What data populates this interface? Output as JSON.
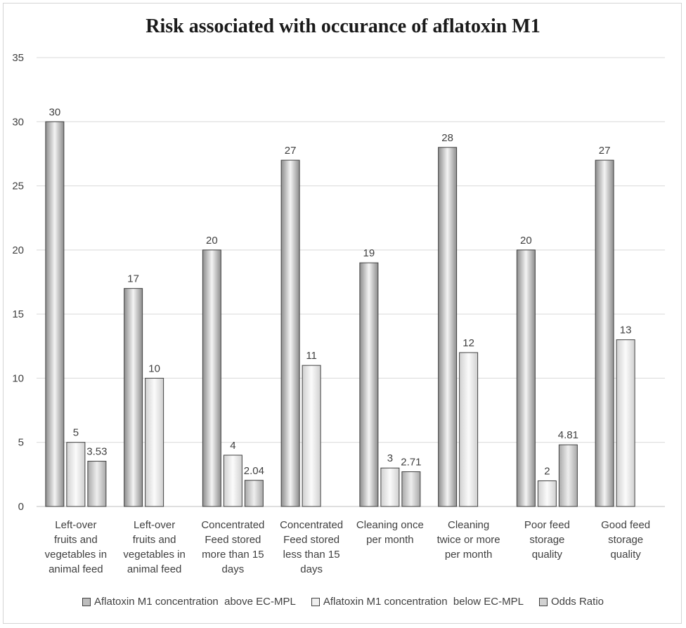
{
  "chart_data": {
    "type": "bar",
    "title": "Risk associated with occurance of aflatoxin M1",
    "xlabel": "",
    "ylabel": "",
    "ylim": [
      0,
      35
    ],
    "yticks": [
      0,
      5,
      10,
      15,
      20,
      25,
      30,
      35
    ],
    "grid": true,
    "legend_position": "bottom",
    "categories": [
      [
        "Left-over",
        "fruits and",
        "vegetables in",
        "animal feed"
      ],
      [
        "Left-over",
        "fruits and",
        "vegetables in",
        "animal feed"
      ],
      [
        "Concentrated",
        "Feed stored",
        "more than 15",
        "days"
      ],
      [
        "Concentrated",
        "Feed stored",
        "less than 15",
        "days"
      ],
      [
        "Cleaning  once",
        "per month"
      ],
      [
        "Cleaning",
        "twice or more",
        "per month"
      ],
      [
        "Poor feed",
        "storage",
        "quality"
      ],
      [
        "Good feed",
        "storage",
        "quality"
      ]
    ],
    "series": [
      {
        "name": "Aflatoxin M1 concentration  above EC-MPL",
        "values": [
          30,
          17,
          20,
          27,
          19,
          28,
          20,
          27
        ],
        "labels": [
          "30",
          "17",
          "20",
          "27",
          "19",
          "28",
          "20",
          "27"
        ],
        "color": "#c9c9c9"
      },
      {
        "name": "Aflatoxin M1 concentration  below EC-MPL",
        "values": [
          5,
          10,
          4,
          11,
          3,
          12,
          2,
          13
        ],
        "labels": [
          "5",
          "10",
          "4",
          "11",
          "3",
          "12",
          "2",
          "13"
        ],
        "color": "#ececec"
      },
      {
        "name": "Odds Ratio",
        "values": [
          3.53,
          null,
          2.04,
          null,
          2.71,
          null,
          4.81,
          null
        ],
        "labels": [
          "3.53",
          null,
          "2.04",
          null,
          "2.71",
          null,
          "4.81",
          null
        ],
        "color": "#d6d6d6"
      }
    ]
  }
}
